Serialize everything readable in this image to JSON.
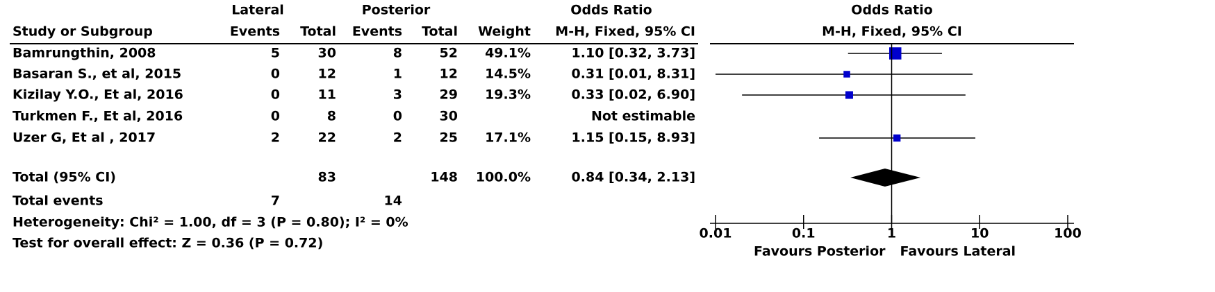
{
  "chart_data": {
    "type": "forest",
    "header": {
      "group1": "Lateral",
      "group2": "Posterior",
      "study": "Study or Subgroup",
      "events1": "Events",
      "total1": "Total",
      "events2": "Events",
      "total2": "Total",
      "weight": "Weight",
      "or_title": "Odds Ratio",
      "or_method": "M-H, Fixed, 95% CI"
    },
    "plot_title": "Odds Ratio",
    "plot_method": "M-H, Fixed, 95% CI",
    "studies": [
      {
        "name": "Bamrungthin, 2008",
        "events1": 5,
        "total1": 30,
        "events2": 8,
        "total2": 52,
        "weight": 49.1,
        "weight_label": "49.1%",
        "or": 1.1,
        "ci": [
          0.32,
          3.73
        ],
        "or_label": "1.10 [0.32, 3.73]"
      },
      {
        "name": "Basaran S., et al, 2015",
        "events1": 0,
        "total1": 12,
        "events2": 1,
        "total2": 12,
        "weight": 14.5,
        "weight_label": "14.5%",
        "or": 0.31,
        "ci": [
          0.01,
          8.31
        ],
        "or_label": "0.31 [0.01, 8.31]"
      },
      {
        "name": "Kizilay Y.O., Et al, 2016",
        "events1": 0,
        "total1": 11,
        "events2": 3,
        "total2": 29,
        "weight": 19.3,
        "weight_label": "19.3%",
        "or": 0.33,
        "ci": [
          0.02,
          6.9
        ],
        "or_label": "0.33 [0.02, 6.90]"
      },
      {
        "name": "Turkmen F., Et al,  2016",
        "events1": 0,
        "total1": 8,
        "events2": 0,
        "total2": 30,
        "weight": null,
        "weight_label": null,
        "or": null,
        "ci": null,
        "or_label": "Not estimable"
      },
      {
        "name": "Uzer G, Et al , 2017",
        "events1": 2,
        "total1": 22,
        "events2": 2,
        "total2": 25,
        "weight": 17.1,
        "weight_label": "17.1%",
        "or": 1.15,
        "ci": [
          0.15,
          8.93
        ],
        "or_label": "1.15 [0.15, 8.93]"
      }
    ],
    "total": {
      "name": "Total (95% CI)",
      "total1": 83,
      "total2": 148,
      "weight": 100.0,
      "weight_label": "100.0%",
      "or": 0.84,
      "ci": [
        0.34,
        2.13
      ],
      "or_label": "0.84 [0.34, 2.13]"
    },
    "total_events": {
      "name": "Total events",
      "events1": 7,
      "events2": 14
    },
    "heterogeneity": "Heterogeneity: Chi² = 1.00, df = 3 (P = 0.80); I² = 0%",
    "overall_effect": "Test for overall effect: Z = 0.36 (P = 0.72)",
    "log_scale": true,
    "xlim": [
      0.01,
      100
    ],
    "xticks": [
      0.01,
      0.1,
      1,
      10,
      100
    ],
    "xlabel_left": "Favours Posterior",
    "xlabel_right": "Favours Lateral",
    "color": "#0000cc"
  }
}
